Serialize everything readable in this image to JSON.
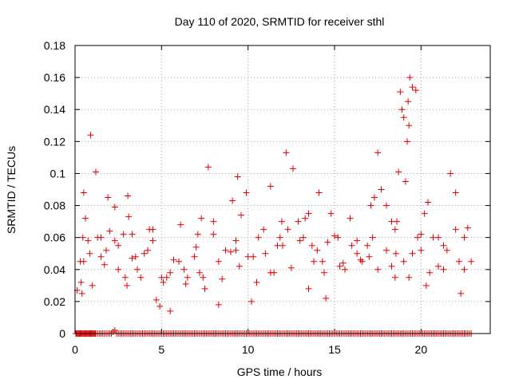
{
  "chart_data": {
    "type": "scatter",
    "title": "Day 110 of 2020, SRMTID for receiver sthl",
    "xlabel": "GPS time / hours",
    "ylabel": "SRMTID / TECUs",
    "xlim": [
      0,
      24
    ],
    "ylim": [
      0,
      0.18
    ],
    "xticks": [
      0,
      5,
      10,
      15,
      20
    ],
    "xtick_labels": [
      "0",
      "5",
      "10",
      "15",
      "20"
    ],
    "yticks": [
      0,
      0.02,
      0.04,
      0.06,
      0.08,
      0.1,
      0.12,
      0.14,
      0.16,
      0.18
    ],
    "ytick_labels": [
      "0",
      "0.02",
      "0.04",
      "0.06",
      "0.08",
      "0.1",
      "0.12",
      "0.14",
      "0.16",
      "0.18"
    ],
    "grid": true,
    "marker": "+",
    "color": "#e00000",
    "series": [
      {
        "name": "SRMTID",
        "x": [
          0.05,
          0.1,
          0.15,
          0.2,
          0.25,
          0.3,
          0.35,
          0.4,
          0.45,
          0.5,
          0.55,
          0.6,
          0.65,
          0.7,
          0.75,
          0.8,
          0.85,
          0.9,
          0.95,
          1.0,
          1.05,
          1.1,
          1.15,
          1.2,
          1.3,
          1.4,
          1.5,
          1.6,
          1.7,
          1.8,
          1.9,
          2.0,
          2.1,
          2.2,
          2.3,
          2.4,
          2.5,
          2.6,
          2.7,
          2.8,
          2.9,
          3.0,
          3.1,
          3.2,
          3.3,
          3.4,
          3.5,
          3.6,
          3.7,
          3.8,
          3.9,
          4.0,
          4.1,
          4.2,
          4.3,
          4.4,
          4.5,
          4.6,
          4.7,
          4.8,
          4.9,
          5.0,
          5.1,
          5.2,
          5.3,
          5.4,
          5.5,
          5.6,
          5.7,
          5.8,
          5.9,
          6.0,
          6.1,
          6.2,
          6.3,
          6.4,
          6.5,
          6.6,
          6.7,
          6.8,
          6.9,
          7.0,
          7.1,
          7.2,
          7.3,
          7.4,
          7.5,
          7.6,
          7.7,
          7.8,
          7.9,
          8.0,
          8.1,
          8.2,
          8.3,
          8.4,
          8.5,
          8.6,
          8.7,
          8.8,
          8.9,
          9.0,
          9.1,
          9.2,
          9.3,
          9.4,
          9.5,
          9.6,
          9.7,
          9.8,
          9.9,
          10.0,
          10.1,
          10.2,
          10.3,
          10.4,
          10.5,
          10.6,
          10.7,
          10.8,
          10.9,
          11.0,
          11.1,
          11.2,
          11.3,
          11.4,
          11.5,
          11.6,
          11.7,
          11.8,
          11.9,
          12.0,
          12.1,
          12.2,
          12.3,
          12.4,
          12.5,
          12.6,
          12.7,
          12.8,
          12.9,
          13.0,
          13.1,
          13.2,
          13.3,
          13.4,
          13.5,
          13.6,
          13.7,
          13.8,
          13.9,
          14.0,
          14.1,
          14.2,
          14.3,
          14.4,
          14.5,
          14.6,
          14.7,
          14.8,
          14.9,
          15.0,
          15.1,
          15.2,
          15.3,
          15.4,
          15.5,
          15.6,
          15.7,
          15.8,
          15.9,
          16.0,
          16.1,
          16.2,
          16.3,
          16.4,
          16.5,
          16.6,
          16.7,
          16.8,
          16.9,
          17.0,
          17.1,
          17.2,
          17.3,
          17.4,
          17.5,
          17.6,
          17.7,
          17.8,
          17.9,
          18.0,
          18.1,
          18.2,
          18.3,
          18.4,
          18.5,
          18.6,
          18.7,
          18.8,
          18.9,
          19.0,
          19.1,
          19.2,
          19.3,
          19.4,
          19.5,
          19.6,
          19.7,
          19.8,
          19.9,
          20.0,
          20.1,
          20.2,
          20.3,
          20.4,
          20.5,
          20.6,
          20.7,
          20.8,
          20.9,
          21.0,
          21.1,
          21.2,
          21.3,
          21.4,
          21.5,
          21.6,
          21.7,
          21.8,
          21.9,
          22.0,
          22.1,
          22.2,
          22.3,
          22.4,
          22.5,
          22.6,
          22.7,
          22.8,
          22.9,
          0.05,
          0.08,
          0.12,
          0.35,
          0.4,
          0.45,
          0.5,
          0.6,
          0.75,
          0.85,
          0.9,
          1.2,
          1.5,
          1.7,
          1.8,
          1.9,
          2.3,
          2.5,
          2.8,
          2.9,
          3.05,
          3.1,
          3.3,
          3.6,
          3.8,
          4.2,
          4.5,
          4.7,
          4.9,
          5.1,
          5.5,
          5.7,
          6.1,
          6.4,
          6.9,
          7.1,
          7.2,
          7.4,
          7.7,
          8.0,
          8.3,
          8.7,
          9.1,
          9.3,
          9.4,
          9.6,
          9.9,
          10.2,
          10.6,
          10.9,
          11.3,
          11.7,
          11.85,
          11.95,
          12.2,
          12.6,
          12.9,
          13.2,
          13.5,
          13.7,
          13.8,
          14.1,
          14.4,
          14.6,
          14.8,
          15.2,
          15.6,
          15.9,
          16.3,
          16.6,
          16.9,
          17.1,
          17.2,
          17.5,
          17.7,
          18.0,
          18.3,
          18.5,
          18.55,
          18.6,
          18.7,
          18.8,
          18.9,
          19.0,
          19.1,
          19.2,
          19.25,
          19.3,
          19.35,
          19.5,
          19.7,
          19.8,
          20.0,
          20.2,
          20.4,
          20.7,
          21.0,
          21.3,
          21.7,
          22.0,
          22.2,
          22.5,
          22.7,
          22.9,
          1.0,
          2.0,
          3.0,
          4.0,
          5.0,
          6.0,
          7.0,
          8.0,
          9.0,
          10.0,
          11.0,
          12.0,
          13.0,
          14.0,
          15.0,
          16.0,
          17.0,
          18.0,
          19.0,
          20.0,
          21.0,
          22.0,
          0.5,
          1.5,
          2.5,
          3.5,
          4.5,
          5.5,
          6.5,
          7.5,
          8.5,
          9.5,
          10.5,
          11.5,
          12.5,
          13.5,
          14.5,
          15.5,
          16.5,
          17.5,
          18.5,
          19.5,
          20.5,
          21.5,
          22.5,
          0.3,
          1.3,
          2.3,
          3.3,
          4.3,
          5.3,
          6.3,
          7.3,
          8.3,
          9.3,
          10.3,
          11.3,
          12.3,
          13.3,
          14.3,
          15.3,
          16.3,
          17.3,
          18.3,
          19.3,
          20.3,
          21.3,
          22.3
        ],
        "y": [
          0,
          0,
          0,
          0,
          0,
          0,
          0,
          0,
          0,
          0,
          0,
          0,
          0,
          0,
          0,
          0,
          0,
          0,
          0,
          0,
          0,
          0,
          0,
          0,
          0,
          0,
          0,
          0,
          0,
          0,
          0,
          0,
          0,
          0.001,
          0.002,
          0,
          0,
          0,
          0,
          0,
          0,
          0,
          0,
          0,
          0,
          0,
          0,
          0,
          0,
          0,
          0,
          0,
          0,
          0,
          0,
          0,
          0,
          0,
          0,
          0,
          0,
          0,
          0,
          0,
          0,
          0,
          0,
          0,
          0,
          0,
          0,
          0,
          0,
          0,
          0,
          0,
          0,
          0,
          0,
          0,
          0,
          0,
          0,
          0,
          0,
          0,
          0,
          0,
          0,
          0,
          0,
          0,
          0,
          0,
          0,
          0,
          0,
          0,
          0,
          0,
          0,
          0,
          0,
          0,
          0,
          0,
          0,
          0,
          0,
          0,
          0,
          0,
          0,
          0,
          0,
          0,
          0,
          0,
          0,
          0,
          0,
          0,
          0,
          0,
          0,
          0,
          0,
          0,
          0,
          0,
          0,
          0,
          0,
          0,
          0,
          0,
          0,
          0,
          0,
          0,
          0,
          0,
          0,
          0,
          0,
          0,
          0,
          0,
          0,
          0,
          0,
          0,
          0,
          0,
          0,
          0,
          0,
          0,
          0,
          0,
          0,
          0,
          0,
          0,
          0,
          0,
          0,
          0,
          0,
          0,
          0,
          0,
          0,
          0,
          0,
          0,
          0,
          0,
          0,
          0,
          0,
          0,
          0,
          0,
          0,
          0,
          0,
          0,
          0,
          0,
          0,
          0,
          0,
          0,
          0,
          0,
          0,
          0,
          0,
          0,
          0,
          0,
          0,
          0,
          0,
          0,
          0,
          0,
          0,
          0,
          0,
          0,
          0,
          0,
          0,
          0,
          0,
          0,
          0,
          0,
          0,
          0,
          0,
          0,
          0,
          0,
          0,
          0,
          0,
          0,
          0,
          0,
          0,
          0,
          0,
          0,
          0,
          0,
          0,
          0,
          0,
          0,
          0,
          0.027,
          0.032,
          0.025,
          0.06,
          0.088,
          0.072,
          0.058,
          0.05,
          0.124,
          0.101,
          0.06,
          0.043,
          0.052,
          0.085,
          0.079,
          0.055,
          0.062,
          0.035,
          0.086,
          0.073,
          0.047,
          0.04,
          0.035,
          0.052,
          0.065,
          0.021,
          0.017,
          0.032,
          0.014,
          0.046,
          0.068,
          0.031,
          0.048,
          0.062,
          0.038,
          0.035,
          0.104,
          0.07,
          0.018,
          0.052,
          0.083,
          0.058,
          0.098,
          0.074,
          0.088,
          0.02,
          0.06,
          0.065,
          0.092,
          0.055,
          0.06,
          0.07,
          0.113,
          0.103,
          0.07,
          0.06,
          0.075,
          0.055,
          0.045,
          0.088,
          0.038,
          0.057,
          0.075,
          0.06,
          0.04,
          0.072,
          0.058,
          0.045,
          0.055,
          0.08,
          0.06,
          0.113,
          0.09,
          0.08,
          0.07,
          0.065,
          0.05,
          0.07,
          0.101,
          0.151,
          0.14,
          0.135,
          0.095,
          0.12,
          0.145,
          0.13,
          0.16,
          0.154,
          0.152,
          0.06,
          0.052,
          0.075,
          0.082,
          0.06,
          0.042,
          0.055,
          0.1,
          0.088,
          0.045,
          0.04,
          0.066,
          0.045,
          0.03,
          0.064,
          0.03,
          0.05,
          0.035,
          0.045,
          0.054,
          0.062,
          0.051,
          0.048,
          0.05,
          0.055,
          0.058,
          0.052,
          0.061,
          0.055,
          0.048,
          0.052,
          0.045,
          0.062,
          0.06,
          0.065,
          0.045,
          0.048,
          0.04,
          0.048,
          0.058,
          0.038,
          0.035,
          0.028,
          0.034,
          0.042,
          0.032,
          0.038,
          0.041,
          0.028,
          0.022,
          0.044,
          0.046,
          0.04,
          0.035,
          0.05,
          0.038,
          0.052,
          0.06,
          0.045,
          0.06,
          0.058,
          0.062,
          0.065,
          0.035,
          0.04,
          0.072,
          0.045,
          0.052,
          0.048,
          0.038,
          0.065,
          0.072,
          0.045,
          0.042,
          0.05,
          0.085,
          0.042,
          0.035,
          0.03,
          0.04,
          0.025
        ]
      }
    ]
  }
}
